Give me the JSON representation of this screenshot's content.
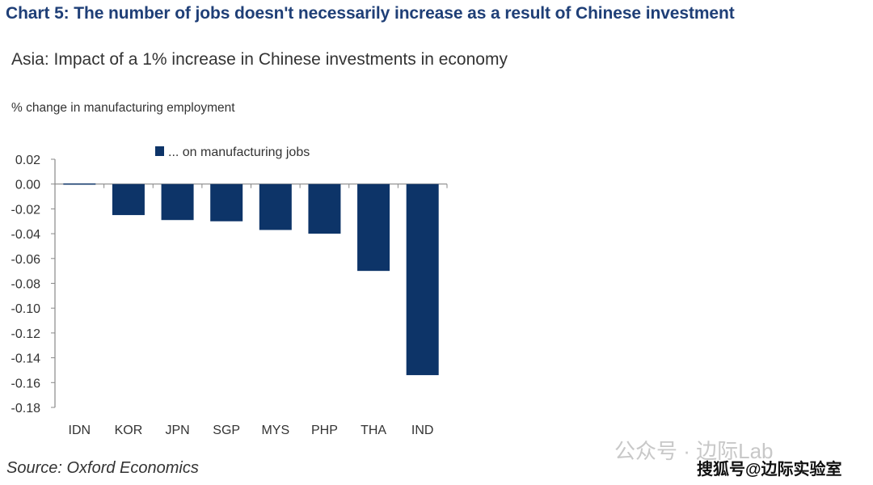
{
  "title": "Chart 5: The number of jobs doesn't necessarily increase as a result of Chinese investment",
  "source": "Source: Oxford Economics",
  "watermarks": [
    "公众号 · 边际Lab",
    "搜狐号@边际实验室"
  ],
  "chart_data": {
    "type": "bar",
    "title": "Asia: Impact of a 1% increase in Chinese investments in economy",
    "ylabel": "% change in manufacturing employment",
    "xlabel": "",
    "categories": [
      "IDN",
      "KOR",
      "JPN",
      "SGP",
      "MYS",
      "PHP",
      "THA",
      "IND"
    ],
    "series": [
      {
        "name": "... on manufacturing jobs",
        "color": "#0d3468",
        "values": [
          0.0005,
          -0.025,
          -0.029,
          -0.03,
          -0.037,
          -0.04,
          -0.07,
          -0.154
        ]
      }
    ],
    "ylim": [
      -0.18,
      0.02
    ],
    "yticks": [
      "0.02",
      "0.00",
      "-0.02",
      "-0.04",
      "-0.06",
      "-0.08",
      "-0.10",
      "-0.12",
      "-0.14",
      "-0.16",
      "-0.18"
    ],
    "grid": false,
    "legend": "top-center"
  }
}
